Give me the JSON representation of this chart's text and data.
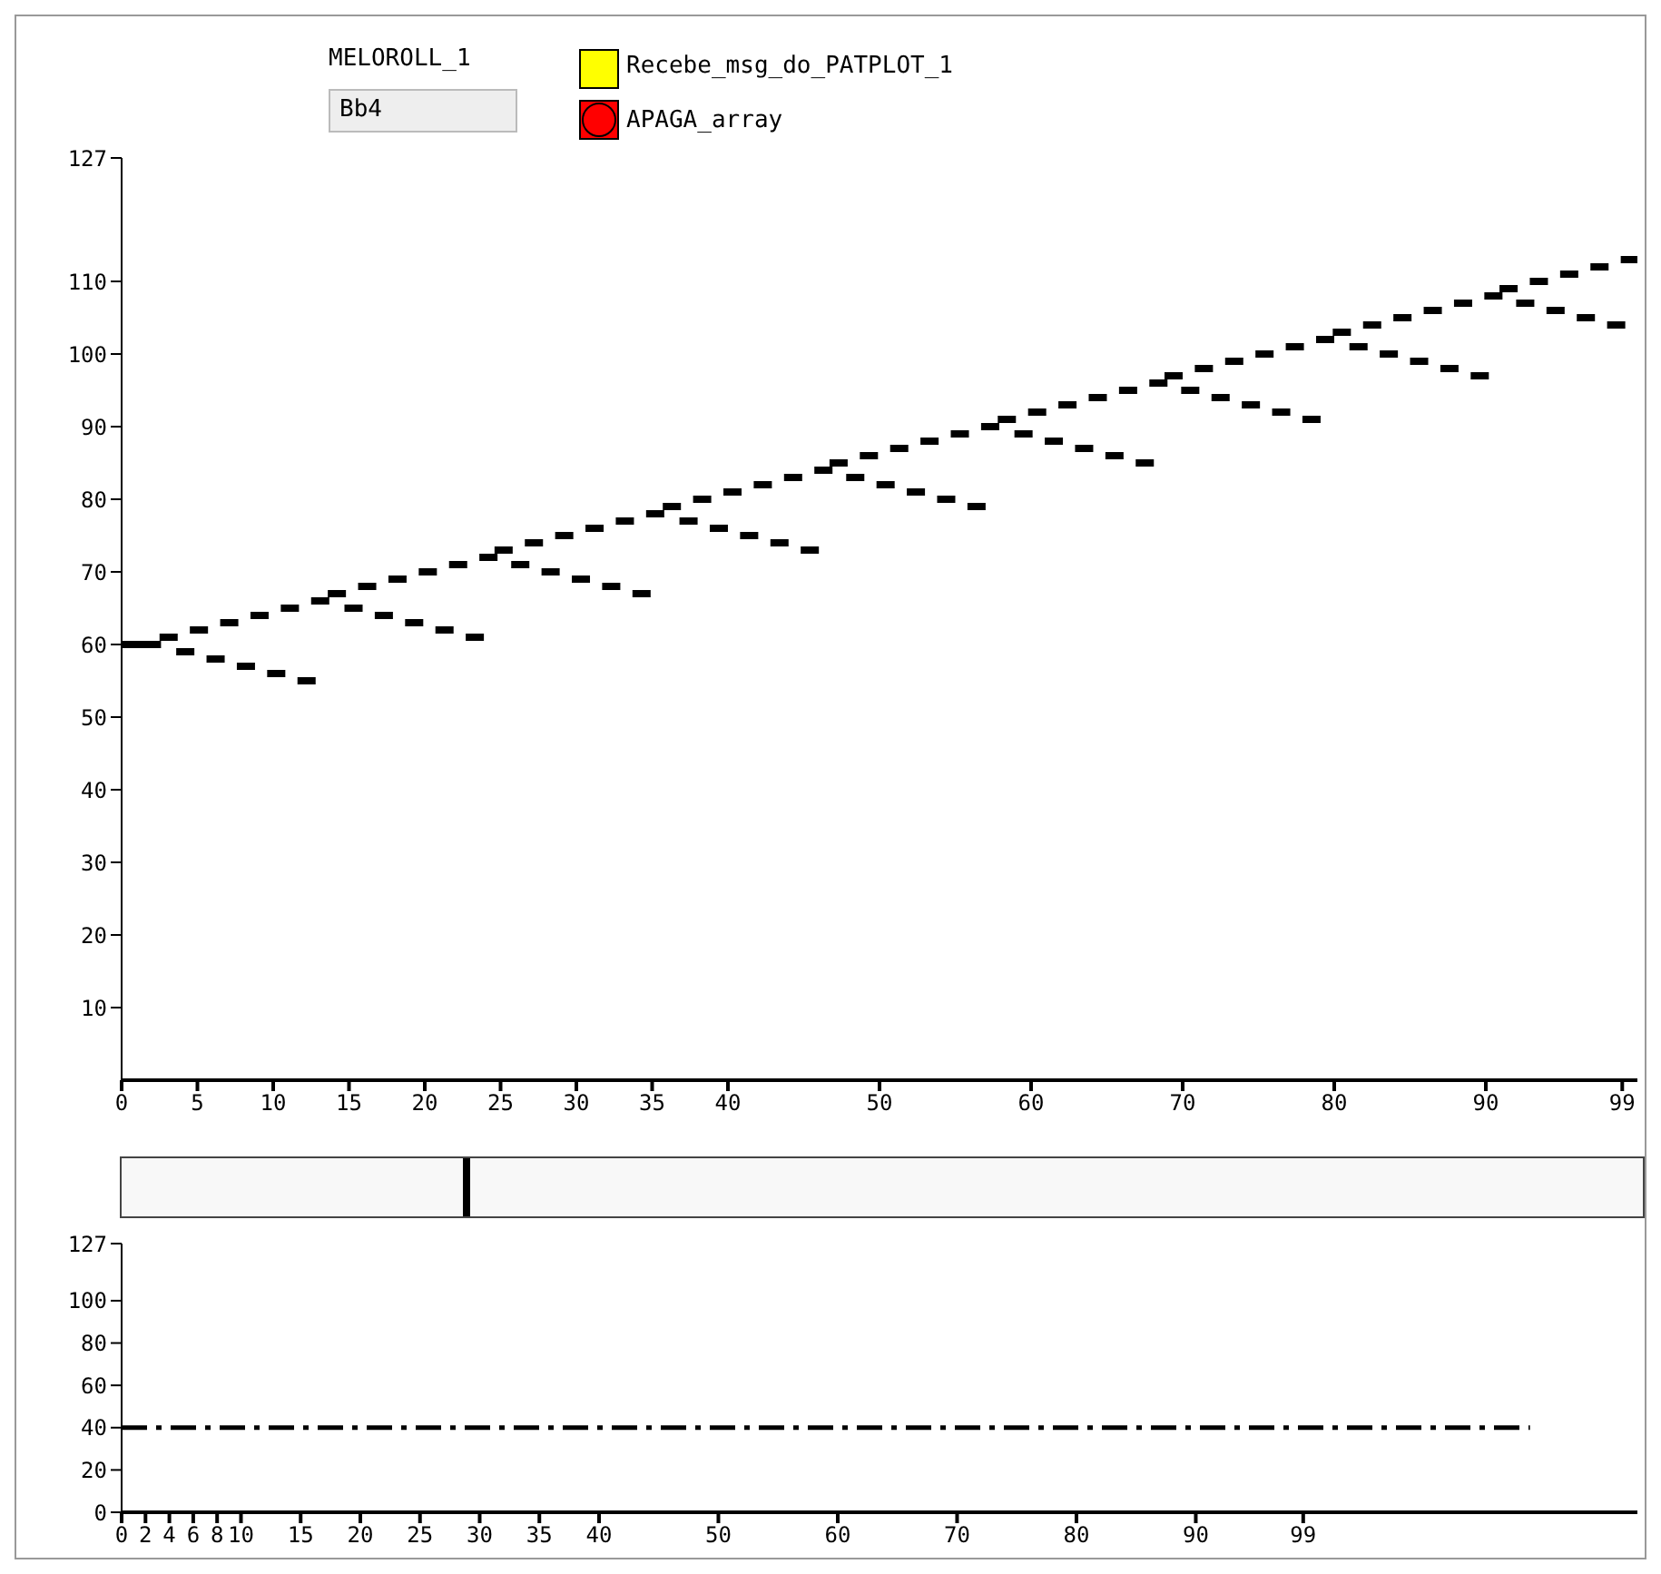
{
  "chart_data": [
    {
      "type": "scatter",
      "annotations": [
        "MELOROLL_1",
        "Bb4",
        "Recebe_msg_do_PATPLOT_1",
        "APAGA_array"
      ],
      "color": "#000000",
      "marker": "square",
      "grid": false,
      "x": [
        0,
        1,
        2,
        3.1,
        5.1,
        7.1,
        9.1,
        11.1,
        13.1,
        4.2,
        6.2,
        8.2,
        10.2,
        12.2,
        14.2,
        16.2,
        18.2,
        20.2,
        22.2,
        24.2,
        15.3,
        17.3,
        19.3,
        21.3,
        23.3,
        25.2,
        27.2,
        29.2,
        31.2,
        33.2,
        35.2,
        26.3,
        28.3,
        30.3,
        32.3,
        34.3,
        36.3,
        38.3,
        40.3,
        42.3,
        44.3,
        46.3,
        37.4,
        39.4,
        41.4,
        43.4,
        45.4,
        47.3,
        49.3,
        51.3,
        53.3,
        55.3,
        57.3,
        48.4,
        50.4,
        52.4,
        54.4,
        56.4,
        58.4,
        60.4,
        62.4,
        64.4,
        66.4,
        68.4,
        59.5,
        61.5,
        63.5,
        65.5,
        67.5,
        69.4,
        71.4,
        73.4,
        75.4,
        77.4,
        79.4,
        70.5,
        72.5,
        74.5,
        76.5,
        78.5,
        80.5,
        82.5,
        84.5,
        86.5,
        88.5,
        90.5,
        81.6,
        83.6,
        85.6,
        87.6,
        89.6,
        91.5,
        93.5,
        95.5,
        97.5,
        99.5,
        92.6,
        94.6,
        96.6,
        98.6
      ],
      "values": [
        60,
        60,
        60,
        61,
        62,
        63,
        64,
        65,
        66,
        59,
        58,
        57,
        56,
        55,
        67,
        68,
        69,
        70,
        71,
        72,
        65,
        64,
        63,
        62,
        61,
        73,
        74,
        75,
        76,
        77,
        78,
        71,
        70,
        69,
        68,
        67,
        79,
        80,
        81,
        82,
        83,
        84,
        77,
        76,
        75,
        74,
        73,
        85,
        86,
        87,
        88,
        89,
        90,
        83,
        82,
        81,
        80,
        79,
        91,
        92,
        93,
        94,
        95,
        96,
        89,
        88,
        87,
        86,
        85,
        97,
        98,
        99,
        100,
        101,
        102,
        95,
        94,
        93,
        92,
        91,
        103,
        104,
        105,
        106,
        107,
        108,
        101,
        100,
        99,
        98,
        97,
        109,
        110,
        111,
        112,
        113,
        107,
        106,
        105,
        104
      ],
      "xlim": [
        0,
        100
      ],
      "xticks": [
        0,
        5,
        10,
        15,
        20,
        25,
        30,
        35,
        40,
        50,
        60,
        70,
        80,
        90,
        99
      ],
      "ylim": [
        0,
        127
      ],
      "yticks": [
        10,
        20,
        30,
        40,
        50,
        60,
        70,
        80,
        90,
        100,
        110,
        127
      ]
    },
    {
      "type": "line",
      "color": "#000000",
      "line_style": "dashed",
      "marker": "none",
      "grid": false,
      "x": [
        0,
        118
      ],
      "values": [
        40,
        40
      ],
      "xlim": [
        0,
        127
      ],
      "xticks": [
        0,
        2,
        4,
        6,
        8,
        10,
        15,
        20,
        25,
        30,
        35,
        40,
        50,
        60,
        70,
        80,
        90,
        99
      ],
      "ylim": [
        0,
        127
      ],
      "yticks": [
        0,
        20,
        40,
        60,
        80,
        100,
        127
      ]
    }
  ]
}
